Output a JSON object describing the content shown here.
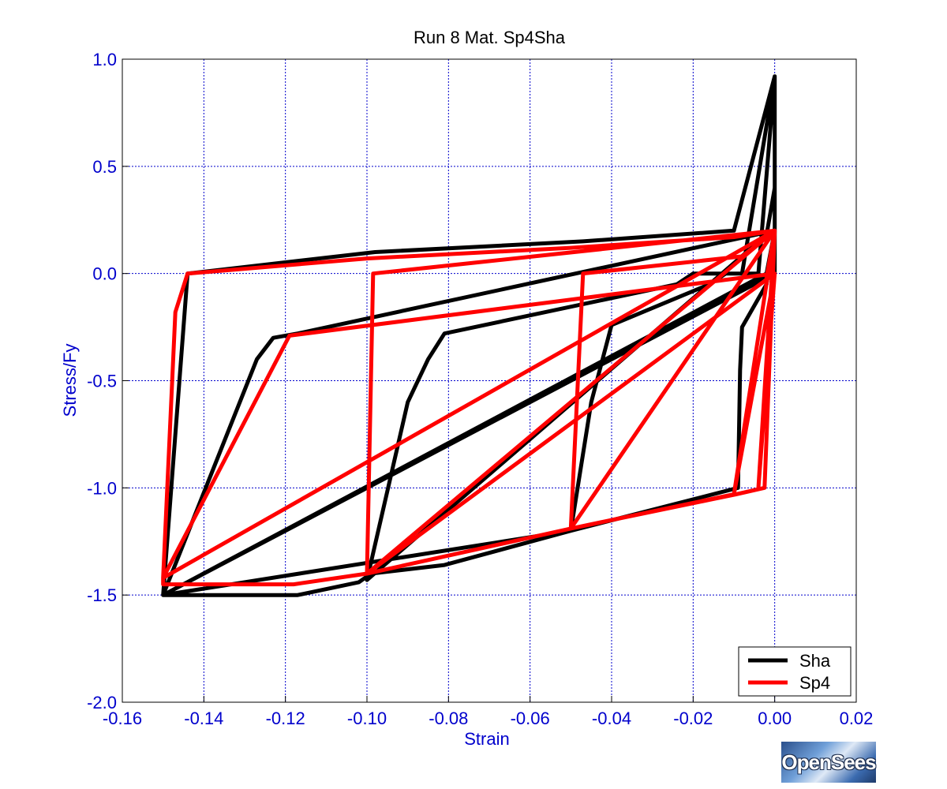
{
  "logo": {
    "text": "OpenSees"
  },
  "chart_data": {
    "type": "line",
    "title": "Run 8    Mat. Sp4Sha",
    "xlabel": "Strain",
    "ylabel": "Stress/Fy",
    "xlim": [
      -0.16,
      0.02
    ],
    "ylim": [
      -2.0,
      1.0
    ],
    "xticks": [
      -0.16,
      -0.14,
      -0.12,
      -0.1,
      -0.08,
      -0.06,
      -0.04,
      -0.02,
      0.0,
      0.02
    ],
    "xtick_labels": [
      "-0.16",
      "-0.14",
      "-0.12",
      "-0.10",
      "-0.08",
      "-0.06",
      "-0.04",
      "-0.02",
      "0.00",
      "0.02"
    ],
    "yticks": [
      1.0,
      0.5,
      0.0,
      -0.5,
      -1.0,
      -1.5,
      -2.0
    ],
    "ytick_labels": [
      "1.0",
      "0.5",
      "0.0",
      "-0.5",
      "-1.0",
      "-1.5",
      "-2.0"
    ],
    "grid": true,
    "legend_position": "bottom-right",
    "colors": {
      "axis_text": "#0000cc",
      "grid": "#0000cc"
    },
    "series": [
      {
        "name": "Sha",
        "color": "#000000",
        "x": [
          0.0,
          -0.002,
          -0.008,
          -0.0085,
          -0.009,
          -0.05,
          -0.045,
          -0.04,
          -0.016,
          -0.012,
          -0.008,
          0.0,
          0.0,
          -0.002,
          -0.1,
          -0.09,
          -0.085,
          -0.081,
          -0.024,
          -0.02,
          -0.004,
          0.0,
          0.0,
          -0.002,
          -0.15,
          -0.127,
          -0.123,
          -0.117,
          0.0,
          0.0,
          -0.15,
          -0.117,
          -0.102,
          -0.099,
          -0.081,
          -0.05,
          -0.15,
          -0.144,
          -0.098,
          -0.047,
          -0.01,
          0.0,
          0.0
        ],
        "y": [
          0.2,
          -0.05,
          -0.25,
          -0.45,
          -1.0,
          -1.2,
          -0.6,
          -0.24,
          -0.05,
          0.0,
          0.0,
          0.92,
          0.4,
          0.18,
          -1.43,
          -0.6,
          -0.4,
          -0.28,
          -0.05,
          0.0,
          0.0,
          0.92,
          0.2,
          0.0,
          -1.5,
          -0.4,
          -0.3,
          -0.28,
          0.2,
          0.0,
          -1.5,
          -1.5,
          -1.44,
          -1.4,
          -1.36,
          -1.2,
          -1.5,
          0.0,
          0.1,
          0.15,
          0.2,
          0.92,
          0.2
        ]
      },
      {
        "name": "Sp4",
        "color": "#ff0000",
        "x": [
          0.0,
          -0.0025,
          -0.0095,
          -0.05,
          -0.047,
          -0.008,
          0.0,
          -0.004,
          0.0,
          -0.01,
          -0.05,
          0.0,
          -0.0985,
          -0.1,
          -0.1,
          0.0,
          -0.1,
          0.0,
          -0.119,
          -0.15,
          -0.15,
          -0.118,
          -0.1,
          -0.05,
          -0.01,
          0.0,
          -0.15,
          -0.147,
          -0.144,
          -0.1,
          -0.05,
          -0.01,
          0.0,
          -0.002,
          0.0
        ],
        "y": [
          0.2,
          -1.0,
          -1.03,
          -1.19,
          0.0,
          0.08,
          0.2,
          -1.0,
          0.0,
          -1.03,
          -1.19,
          0.2,
          0.0,
          -1.4,
          -1.4,
          0.2,
          -1.4,
          0.0,
          -0.29,
          -1.42,
          -1.45,
          -1.45,
          -1.4,
          -1.19,
          -1.03,
          0.2,
          -1.42,
          -0.18,
          0.0,
          0.07,
          0.12,
          0.17,
          0.2,
          -0.02,
          0.2
        ]
      }
    ]
  }
}
